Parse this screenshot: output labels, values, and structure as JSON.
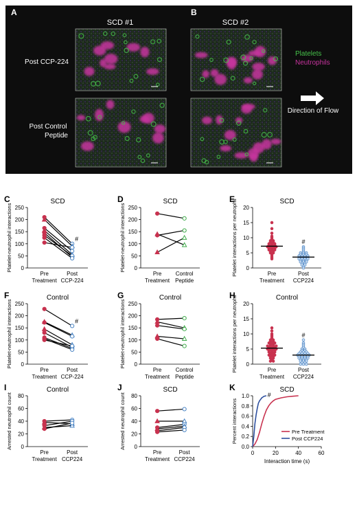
{
  "micrograph": {
    "panel_a": "A",
    "panel_b": "B",
    "col1_title": "SCD #1",
    "col2_title": "SCD #2",
    "row1_label": "Post CCP-224",
    "row2_label_line1": "Post Control",
    "row2_label_line2": "Peptide",
    "legend_platelets": "Platelets",
    "legend_neutrophils": "Neutrophils",
    "flow_line1": "Direction of Flow",
    "color_platelets": "#46c24a",
    "color_neutrophils": "#c8349f"
  },
  "chart_data": [
    {
      "id": "C",
      "panel_letter": "C",
      "type": "paired_line",
      "title": "SCD",
      "ylabel": "Platelet-neutrophil interactions",
      "ylim": [
        0,
        250
      ],
      "yticks": [
        "0",
        "50",
        "100",
        "150",
        "200",
        "250"
      ],
      "cat1_line1": "Pre",
      "cat1_line2": "Treatment",
      "cat2_line1": "Post",
      "cat2_line2": "CCP-224",
      "annotation": "#",
      "pairs": [
        [
          210,
          100
        ],
        [
          200,
          90
        ],
        [
          165,
          70
        ],
        [
          155,
          55
        ],
        [
          145,
          45
        ],
        [
          135,
          50
        ],
        [
          125,
          40
        ],
        [
          105,
          85
        ]
      ],
      "pre_color": "#c8324f",
      "post_color": "#4a84c4"
    },
    {
      "id": "D",
      "panel_letter": "D",
      "type": "paired_line",
      "title": "SCD",
      "ylabel": "Platelet-neutrophil interactions",
      "ylim": [
        0,
        250
      ],
      "yticks": [
        "0",
        "50",
        "100",
        "150",
        "200",
        "250"
      ],
      "cat1_line1": "Pre",
      "cat1_line2": "Treatment",
      "cat2_line1": "Control",
      "cat2_line2": "Peptide",
      "annotation": "",
      "pairs": [
        [
          225,
          205
        ],
        [
          140,
          95
        ],
        [
          135,
          155
        ],
        [
          65,
          125
        ]
      ],
      "pre_color": "#c8324f",
      "post_color": "#3faa4a"
    },
    {
      "id": "E",
      "panel_letter": "E",
      "type": "scatter_mean",
      "title": "SCD",
      "ylabel": "Platelet interactions per neutrophil",
      "ylim": [
        0,
        20
      ],
      "yticks": [
        "0",
        "5",
        "10",
        "15",
        "20"
      ],
      "cat1_line1": "Pre",
      "cat1_line2": "Treatment",
      "cat2_line1": "Post",
      "cat2_line2": "CCP224",
      "annotation": "#",
      "groups": [
        {
          "mean": 7.2,
          "color": "#c8324f",
          "values": [
            15,
            13,
            11.5,
            10.5,
            10,
            9.5,
            9,
            9,
            8.5,
            8.5,
            8,
            8,
            8,
            7.5,
            7.5,
            7.5,
            7,
            7,
            7,
            7,
            6.5,
            6.5,
            6.5,
            6,
            6,
            6,
            5.5,
            5.5,
            5,
            5,
            4.5,
            4,
            3.5,
            3
          ]
        },
        {
          "mean": 3.6,
          "color": "#4a84c4",
          "values": [
            7,
            6.5,
            6,
            5.5,
            5,
            5,
            5,
            4.5,
            4.5,
            4.5,
            4,
            4,
            4,
            4,
            3.5,
            3.5,
            3.5,
            3.5,
            3,
            3,
            3,
            3,
            2.5,
            2.5,
            2.5,
            2,
            2,
            2,
            1.5,
            1.5,
            1,
            1,
            0.5,
            0
          ]
        }
      ]
    },
    {
      "id": "F",
      "panel_letter": "F",
      "type": "paired_line",
      "title": "Control",
      "ylabel": "Platelet-neutrophil interactions",
      "ylim": [
        0,
        250
      ],
      "yticks": [
        "0",
        "50",
        "100",
        "150",
        "200",
        "250"
      ],
      "cat1_line1": "Pre",
      "cat1_line2": "Treatment",
      "cat2_line1": "Post",
      "cat2_line2": "CCP-224",
      "annotation": "#",
      "pairs": [
        [
          228,
          158
        ],
        [
          175,
          120
        ],
        [
          172,
          115
        ],
        [
          145,
          80
        ],
        [
          130,
          70
        ],
        [
          110,
          65
        ],
        [
          105,
          60
        ],
        [
          100,
          75
        ]
      ],
      "pre_color": "#c8324f",
      "post_color": "#4a84c4"
    },
    {
      "id": "G",
      "panel_letter": "G",
      "type": "paired_line",
      "title": "Control",
      "ylabel": "Platelet-neutrophil interactions",
      "ylim": [
        0,
        250
      ],
      "yticks": [
        "0",
        "50",
        "100",
        "150",
        "200",
        "250"
      ],
      "cat1_line1": "Pre",
      "cat1_line2": "Treatment",
      "cat2_line1": "Control",
      "cat2_line2": "Peptide",
      "annotation": "",
      "pairs": [
        [
          185,
          190
        ],
        [
          175,
          150
        ],
        [
          160,
          145
        ],
        [
          115,
          105
        ],
        [
          105,
          75
        ]
      ],
      "pre_color": "#c8324f",
      "post_color": "#3faa4a"
    },
    {
      "id": "H",
      "panel_letter": "H",
      "type": "scatter_mean",
      "title": "Control",
      "ylabel": "Platelet interactions per neutrophil",
      "ylim": [
        0,
        20
      ],
      "yticks": [
        "0",
        "5",
        "10",
        "15",
        "20"
      ],
      "cat1_line1": "Pre",
      "cat1_line2": "Treatment",
      "cat2_line1": "Post",
      "cat2_line2": "CCP224",
      "annotation": "#",
      "groups": [
        {
          "mean": 5.3,
          "color": "#c8324f",
          "values": [
            12,
            11,
            10,
            9.5,
            9,
            8.5,
            8,
            8,
            7.5,
            7.5,
            7,
            7,
            7,
            6.5,
            6.5,
            6,
            6,
            6,
            6,
            5.5,
            5.5,
            5.5,
            5,
            5,
            5,
            5,
            4.5,
            4.5,
            4.5,
            4,
            4,
            4,
            3.5,
            3.5,
            3,
            3,
            3,
            2.5,
            2.5,
            2,
            2,
            1.5,
            1,
            1
          ]
        },
        {
          "mean": 3.0,
          "color": "#4a84c4",
          "values": [
            8,
            7,
            6.5,
            6,
            5.5,
            5,
            5,
            4.5,
            4.5,
            4,
            4,
            4,
            3.5,
            3.5,
            3.5,
            3.5,
            3,
            3,
            3,
            3,
            3,
            2.5,
            2.5,
            2.5,
            2.5,
            2,
            2,
            2,
            2,
            1.5,
            1.5,
            1.5,
            1,
            1,
            1,
            0.5,
            0.5,
            0,
            0,
            0
          ]
        }
      ]
    },
    {
      "id": "I",
      "panel_letter": "I",
      "type": "paired_line",
      "title": "Control",
      "ylabel": "Arrested neutrophil count",
      "ylim": [
        0,
        80
      ],
      "yticks": [
        "0",
        "20",
        "40",
        "60",
        "80"
      ],
      "cat1_line1": "Pre",
      "cat1_line2": "Treatment",
      "cat2_line1": "Post",
      "cat2_line2": "CCP224",
      "annotation": "",
      "pairs": [
        [
          40,
          42
        ],
        [
          38,
          36
        ],
        [
          33,
          40
        ],
        [
          30,
          33
        ],
        [
          28,
          37
        ]
      ],
      "pre_color": "#c8324f",
      "post_color": "#4a84c4"
    },
    {
      "id": "J",
      "panel_letter": "J",
      "type": "paired_line",
      "title": "SCD",
      "ylabel": "Arrested neutrophil count",
      "ylim": [
        0,
        80
      ],
      "yticks": [
        "0",
        "20",
        "40",
        "60",
        "80"
      ],
      "cat1_line1": "Pre",
      "cat1_line2": "Treatment",
      "cat2_line1": "Post",
      "cat2_line2": "CCP224",
      "annotation": "",
      "pairs": [
        [
          56,
          59
        ],
        [
          40,
          40
        ],
        [
          30,
          35
        ],
        [
          28,
          32
        ],
        [
          25,
          30
        ],
        [
          23,
          26
        ]
      ],
      "pre_color": "#c8324f",
      "post_color": "#4a84c4"
    },
    {
      "id": "K",
      "panel_letter": "K",
      "type": "cumulative_line",
      "title": "SCD",
      "ylabel": "Percent interactions",
      "xlabel": "Interaction time (s)",
      "xlim": [
        0,
        60
      ],
      "ylim": [
        0,
        1.0
      ],
      "xticks": [
        "0",
        "20",
        "40",
        "60"
      ],
      "yticks": [
        "0.0",
        "0.2",
        "0.4",
        "0.6",
        "0.8",
        "1.0"
      ],
      "annotation": "#",
      "series": [
        {
          "name": "Pre Treatment",
          "color": "#c8324f",
          "x": [
            0,
            2,
            4,
            6,
            8,
            10,
            12,
            14,
            16,
            18,
            20,
            25,
            30,
            35,
            40
          ],
          "y": [
            0,
            0.05,
            0.14,
            0.28,
            0.45,
            0.6,
            0.72,
            0.8,
            0.86,
            0.9,
            0.93,
            0.96,
            0.98,
            0.99,
            1.0
          ]
        },
        {
          "name": "Post CCP224",
          "color": "#2d4f9e",
          "x": [
            0,
            1,
            2,
            3,
            4,
            5,
            6,
            7,
            8,
            10,
            12
          ],
          "y": [
            0,
            0.2,
            0.45,
            0.62,
            0.75,
            0.85,
            0.9,
            0.93,
            0.96,
            0.99,
            1.0
          ]
        }
      ]
    }
  ]
}
